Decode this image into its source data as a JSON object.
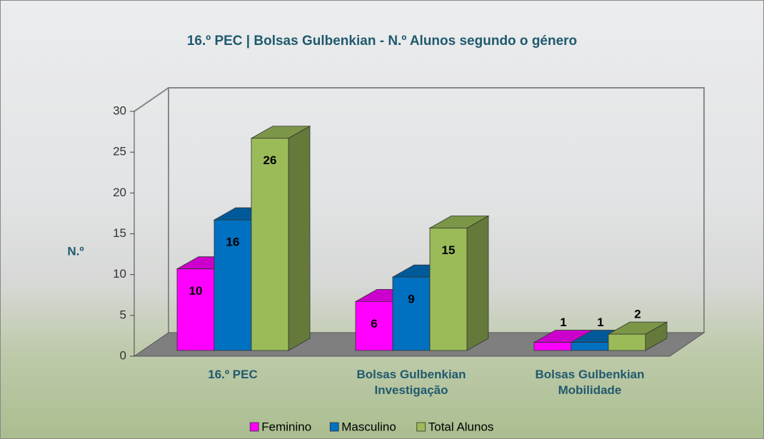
{
  "chart_data": {
    "type": "bar3d",
    "title": "16.º PEC | Bolsas Gulbenkian - N.º Alunos segundo o género",
    "y_label": "N.º",
    "categories": [
      "16.º PEC",
      "Bolsas Gulbenkian Investigação",
      "Bolsas Gulbenkian Mobilidade"
    ],
    "series": [
      {
        "name": "Feminino",
        "color": "#ff00ff",
        "values": [
          10,
          6,
          1
        ]
      },
      {
        "name": "Masculino",
        "color": "#0070c0",
        "values": [
          16,
          9,
          1
        ]
      },
      {
        "name": "Total Alunos",
        "color": "#9bbb59",
        "values": [
          26,
          15,
          2
        ]
      }
    ],
    "ylim": [
      0,
      30
    ],
    "yticks": [
      0,
      5,
      10,
      15,
      20,
      25,
      30
    ],
    "grid": false,
    "legend": "bottom"
  }
}
